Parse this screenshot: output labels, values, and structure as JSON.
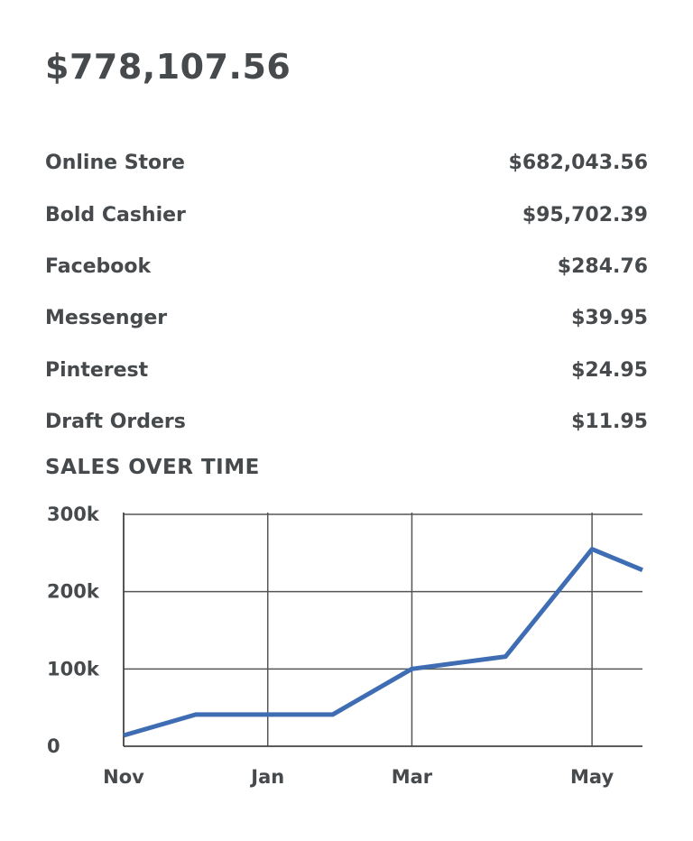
{
  "summary": {
    "total": "$778,107.56"
  },
  "channels": [
    {
      "name": "Online Store",
      "amount": "$682,043.56"
    },
    {
      "name": "Bold Cashier",
      "amount": "$95,702.39"
    },
    {
      "name": "Facebook",
      "amount": "$284.76"
    },
    {
      "name": "Messenger",
      "amount": "$39.95"
    },
    {
      "name": "Pinterest",
      "amount": "$24.95"
    },
    {
      "name": "Draft  Orders",
      "amount": "$11.95"
    }
  ],
  "chart_data": {
    "type": "line",
    "title": "SALES OVER TIME",
    "x_ticks": [
      "Nov",
      "Jan",
      "Mar",
      "May"
    ],
    "x_tick_positions": [
      0,
      2,
      4,
      6.5
    ],
    "x_range": [
      0,
      7.2
    ],
    "y_ticks": [
      "0",
      "100k",
      "200k",
      "300k"
    ],
    "y_tick_values": [
      0,
      100000,
      200000,
      300000
    ],
    "ylim": [
      0,
      300000
    ],
    "grid": true,
    "series": [
      {
        "color": "#3f6db3",
        "x": [
          0,
          1,
          2,
          2.9,
          4,
          5.3,
          6.5,
          7.2
        ],
        "y": [
          14000,
          41000,
          41000,
          41000,
          100000,
          116000,
          255000,
          228000
        ]
      }
    ]
  }
}
